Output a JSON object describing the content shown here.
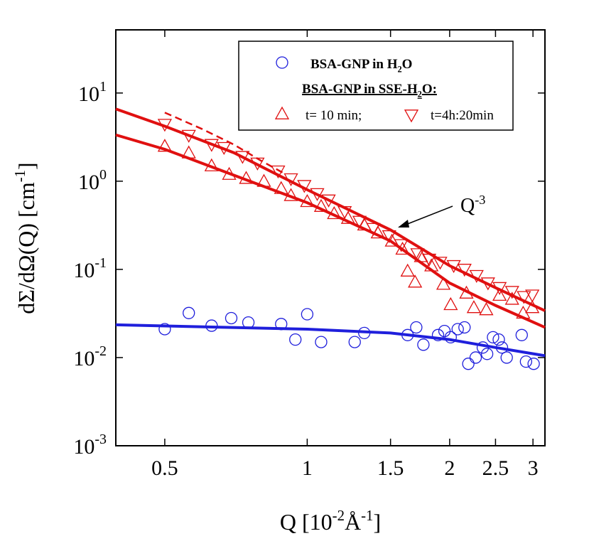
{
  "chart_data": {
    "type": "scatter",
    "x_label": [
      {
        "text": "Q [10"
      },
      {
        "text": "-2",
        "sup": true
      },
      {
        "text": "Å"
      },
      {
        "text": "-1",
        "sup": true
      },
      {
        "text": "]"
      }
    ],
    "y_label": [
      {
        "text": "dΣ/dΩ(Q) [cm"
      },
      {
        "text": "-1",
        "sup": true
      },
      {
        "text": "]"
      }
    ],
    "xscale": "log",
    "yscale": "log",
    "xlim": [
      0.394,
      3.18
    ],
    "ylim": [
      0.001,
      52
    ],
    "xticks": [
      0.5,
      1,
      1.5,
      2,
      2.5,
      3
    ],
    "yticks": [
      {
        "value": 0.001,
        "label": "10",
        "exponent": "-3"
      },
      {
        "value": 0.01,
        "label": "10",
        "exponent": "-2"
      },
      {
        "value": 0.1,
        "label": "10",
        "exponent": "-1"
      },
      {
        "value": 1,
        "label": "10",
        "exponent": "0"
      },
      {
        "value": 10,
        "label": "10",
        "exponent": "1"
      }
    ],
    "legend_title": [
      {
        "text": "BSA-GNP in SSE-H"
      },
      {
        "text": "2",
        "sub": true
      },
      {
        "text": "O:"
      }
    ],
    "annotation": [
      {
        "text": "Q"
      },
      {
        "text": "-3",
        "sup": true
      }
    ],
    "series": [
      {
        "name": [
          {
            "text": "BSA-GNP in H"
          },
          {
            "text": "2",
            "sub": true
          },
          {
            "text": "O"
          }
        ],
        "marker": "circle",
        "color": "#1f1fdc",
        "x": [
          0.5,
          0.562,
          0.628,
          0.691,
          0.751,
          0.881,
          0.944,
          1.0,
          1.07,
          1.26,
          1.32,
          1.63,
          1.7,
          1.76,
          1.89,
          1.95,
          2.01,
          2.08,
          2.15,
          2.19,
          2.27,
          2.35,
          2.4,
          2.47,
          2.54,
          2.58,
          2.64,
          2.84,
          2.9,
          3.01
        ],
        "values": [
          0.021,
          0.032,
          0.023,
          0.028,
          0.025,
          0.024,
          0.016,
          0.031,
          0.015,
          0.015,
          0.019,
          0.018,
          0.022,
          0.014,
          0.018,
          0.02,
          0.017,
          0.021,
          0.022,
          0.0085,
          0.01,
          0.013,
          0.011,
          0.017,
          0.016,
          0.013,
          0.01,
          0.018,
          0.009,
          0.0085
        ]
      },
      {
        "name": "t= 10 min;",
        "marker": "triangle-up",
        "color": "#e01010",
        "x": [
          0.5,
          0.562,
          0.628,
          0.684,
          0.743,
          0.81,
          0.881,
          0.924,
          1.0,
          1.07,
          1.14,
          1.22,
          1.32,
          1.41,
          1.51,
          1.59,
          1.63,
          1.69,
          1.74,
          1.83,
          1.94,
          2.01,
          2.17,
          2.25,
          2.39,
          2.55,
          2.71,
          2.86,
          2.99
        ],
        "values": [
          2.5,
          2.1,
          1.5,
          1.2,
          1.08,
          1.0,
          0.83,
          0.69,
          0.59,
          0.52,
          0.43,
          0.38,
          0.32,
          0.26,
          0.21,
          0.17,
          0.096,
          0.072,
          0.14,
          0.11,
          0.068,
          0.04,
          0.054,
          0.037,
          0.035,
          0.051,
          0.046,
          0.032,
          0.037
        ]
      },
      {
        "name": "t=4h:20min",
        "marker": "triangle-down",
        "color": "#e01010",
        "x": [
          0.5,
          0.562,
          0.628,
          0.667,
          0.73,
          0.785,
          0.868,
          0.924,
          0.986,
          1.05,
          1.11,
          1.2,
          1.29,
          1.38,
          1.49,
          1.58,
          1.71,
          1.81,
          1.91,
          2.04,
          2.15,
          2.28,
          2.41,
          2.55,
          2.71,
          2.87,
          2.99
        ],
        "values": [
          4.4,
          3.3,
          2.6,
          2.4,
          1.9,
          1.6,
          1.3,
          1.06,
          0.89,
          0.72,
          0.61,
          0.45,
          0.35,
          0.29,
          0.24,
          0.19,
          0.15,
          0.13,
          0.12,
          0.11,
          0.1,
          0.085,
          0.07,
          0.062,
          0.056,
          0.049,
          0.051
        ]
      },
      {
        "line": "solid",
        "color": "#1f1fdc",
        "x": [
          0.394,
          1,
          1.5,
          2,
          2.5,
          3.18
        ],
        "values": [
          0.0235,
          0.021,
          0.019,
          0.016,
          0.013,
          0.0105
        ]
      },
      {
        "line": "solid",
        "color": "#e01010",
        "x": [
          0.394,
          0.5,
          0.7,
          1,
          1.5,
          2,
          2.5,
          3.18
        ],
        "values": [
          6.6,
          4.2,
          2.1,
          0.8,
          0.28,
          0.11,
          0.062,
          0.034
        ]
      },
      {
        "line": "solid",
        "color": "#e01010",
        "x": [
          0.394,
          0.5,
          1,
          1.5,
          2,
          2.5,
          3.18
        ],
        "values": [
          3.35,
          2.3,
          0.57,
          0.21,
          0.07,
          0.039,
          0.022
        ]
      },
      {
        "line": "dashed",
        "color": "#e01010",
        "x": [
          0.5,
          0.6,
          0.7,
          0.8,
          0.9
        ],
        "values": [
          6.0,
          3.9,
          2.6,
          1.7,
          1.2
        ]
      }
    ]
  }
}
